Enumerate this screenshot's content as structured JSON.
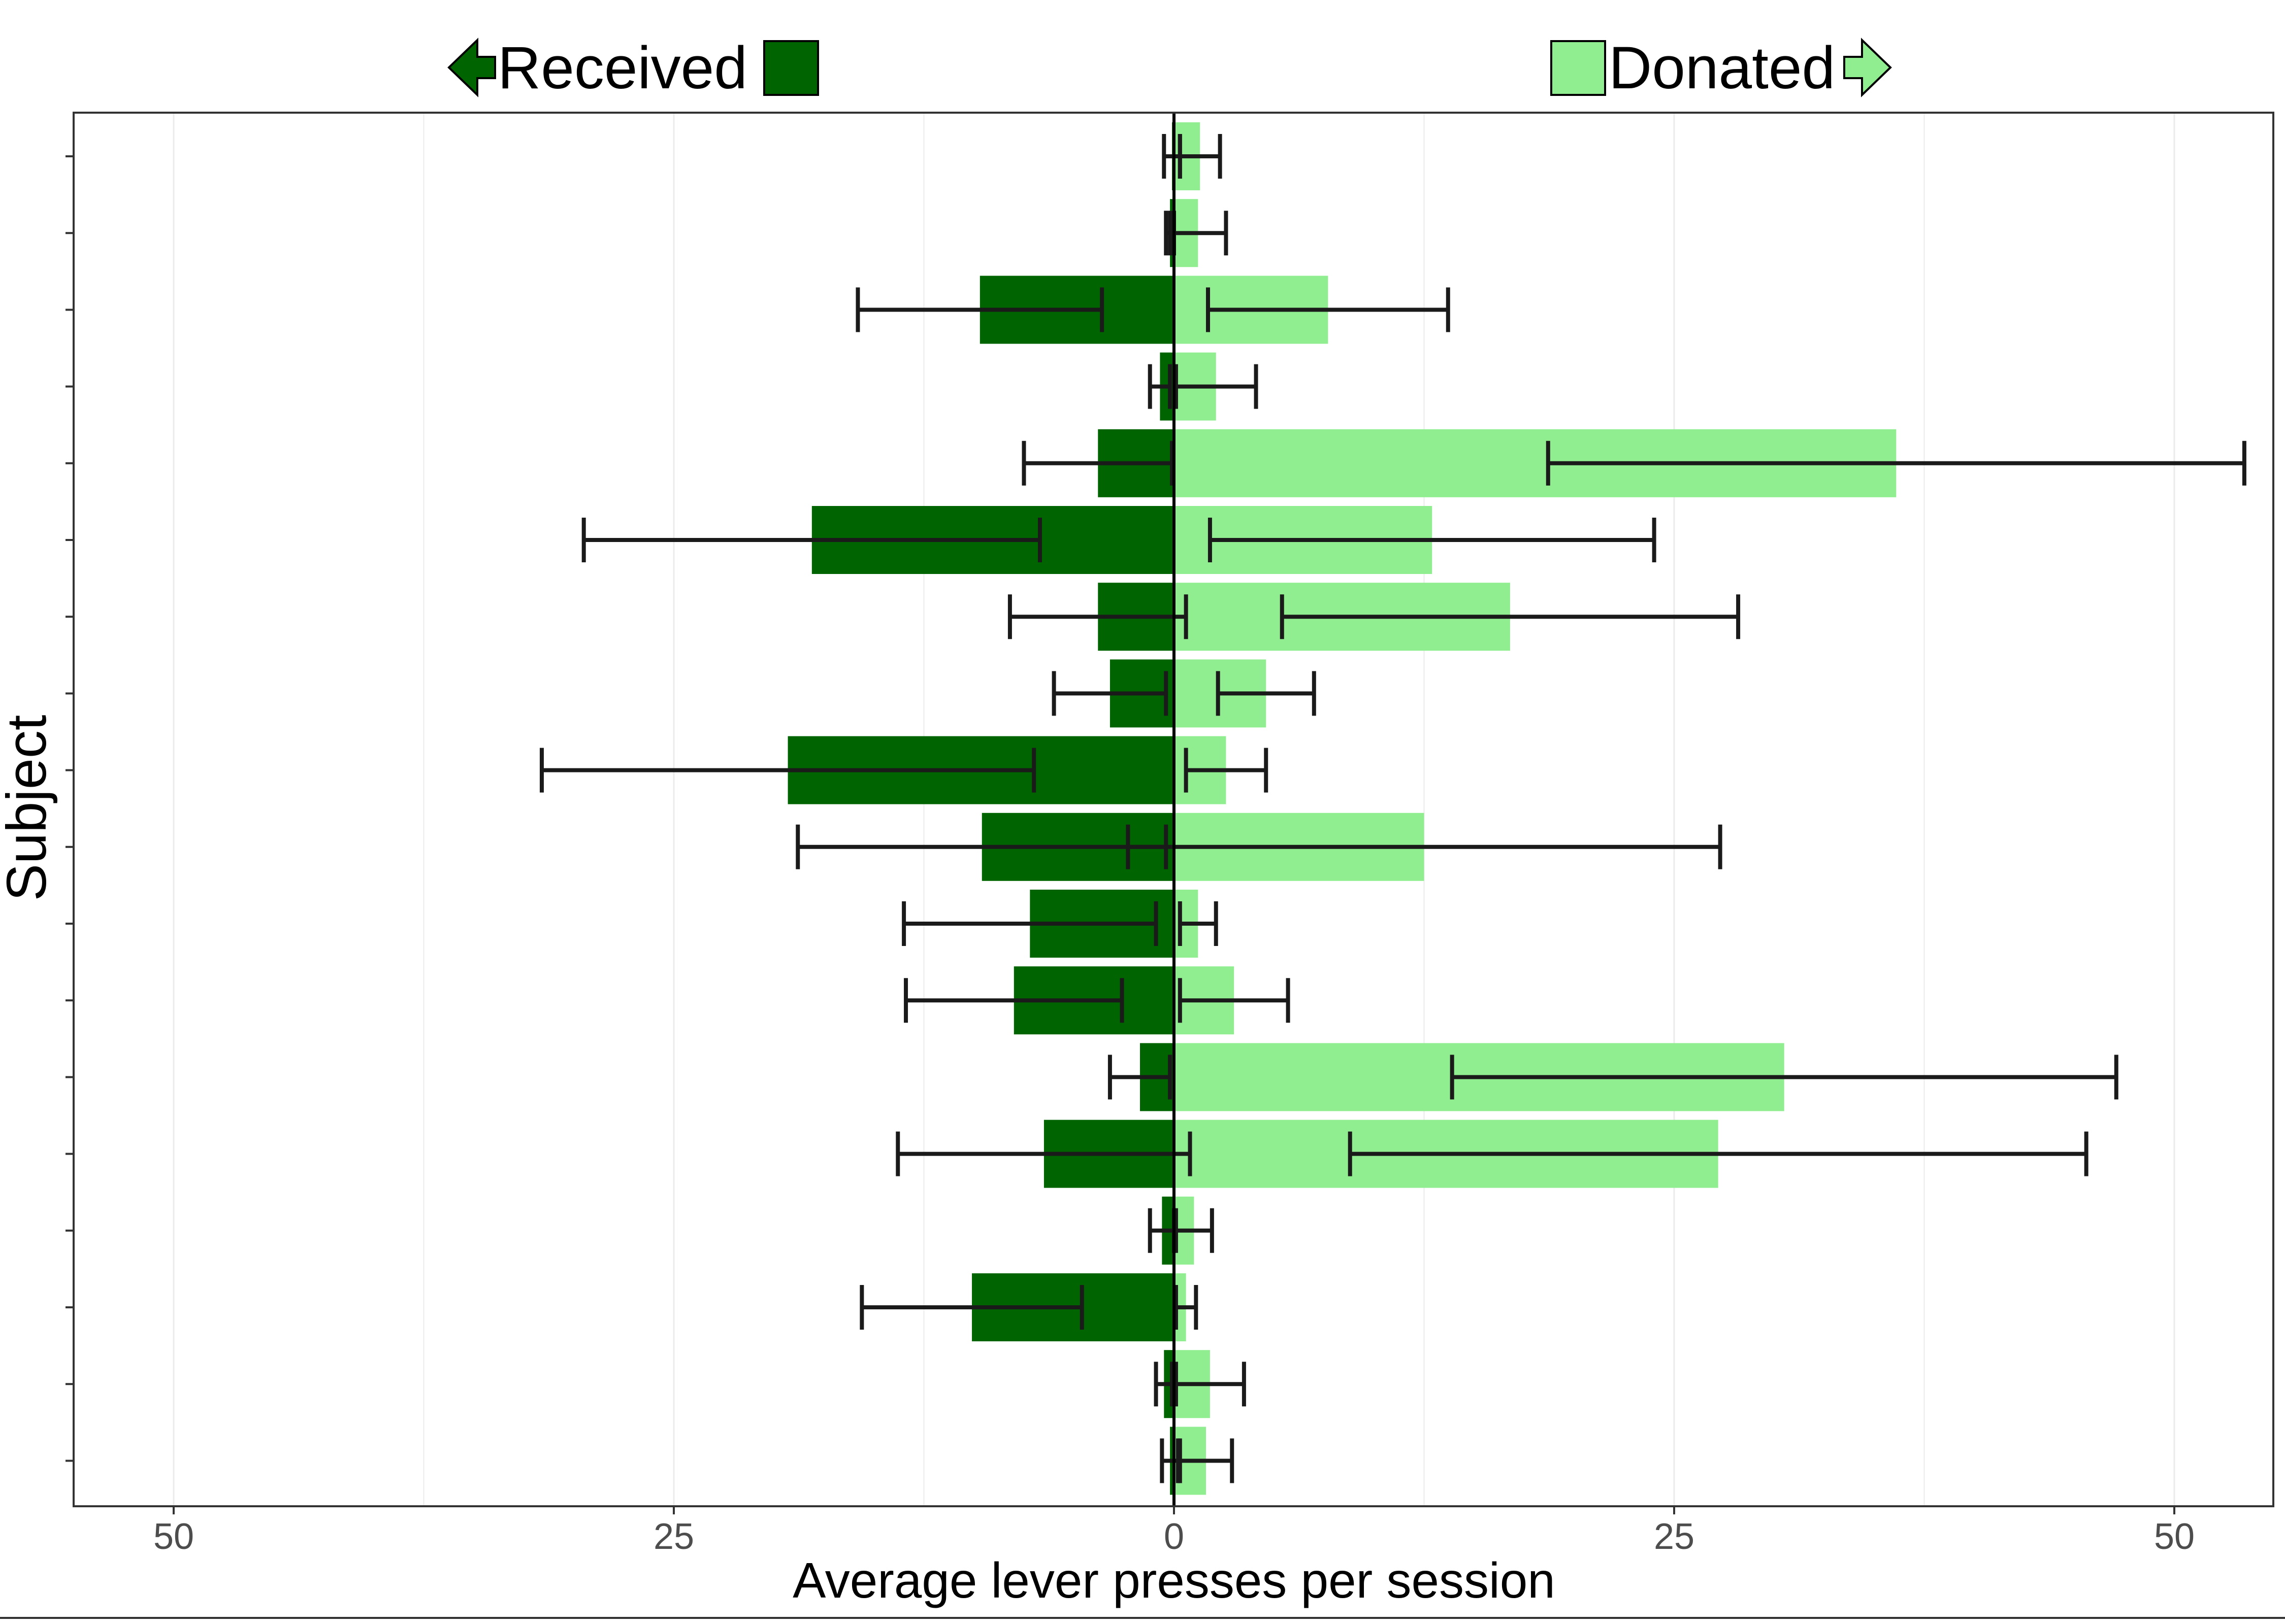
{
  "chart_data": {
    "type": "bar",
    "orientation": "horizontal-diverging",
    "xlabel": "Average lever presses per session",
    "ylabel": "Subject",
    "xlim": [
      -50,
      50
    ],
    "xticks": [
      -50,
      -25,
      0,
      25,
      50
    ],
    "xtick_labels": [
      "50",
      "25",
      "0",
      "25",
      "50"
    ],
    "grid": "vertical major and minor lines",
    "legend_position": "top",
    "legend": {
      "received_label": "Received",
      "donated_label": "Donated"
    },
    "colors": {
      "received": "#006400",
      "donated": "#90EE90",
      "error_bar": "#1a1a1a",
      "grid": "#ebebeb"
    },
    "subjects_count": 18,
    "series": [
      {
        "name": "Received",
        "values": [
          0.1,
          0.2,
          9.7,
          0.7,
          3.8,
          18.1,
          3.8,
          3.2,
          19.3,
          9.6,
          7.2,
          8.0,
          1.7,
          6.5,
          0.6,
          10.1,
          0.5,
          0.2
        ],
        "error": [
          0.4,
          0.2,
          6.1,
          0.5,
          3.7,
          11.4,
          4.4,
          2.8,
          12.3,
          9.2,
          6.3,
          5.4,
          1.5,
          7.3,
          0.6,
          5.5,
          0.4,
          0.4
        ]
      },
      {
        "name": "Donated",
        "values": [
          1.3,
          1.2,
          7.7,
          2.1,
          36.1,
          12.9,
          16.8,
          4.6,
          2.6,
          12.5,
          1.2,
          3.0,
          30.5,
          27.2,
          1.0,
          0.6,
          1.8,
          1.6
        ],
        "error": [
          1.0,
          1.4,
          6.0,
          2.0,
          17.4,
          11.1,
          11.4,
          2.4,
          2.0,
          14.8,
          0.9,
          2.7,
          16.6,
          18.4,
          0.9,
          0.5,
          1.7,
          1.3
        ]
      }
    ]
  }
}
